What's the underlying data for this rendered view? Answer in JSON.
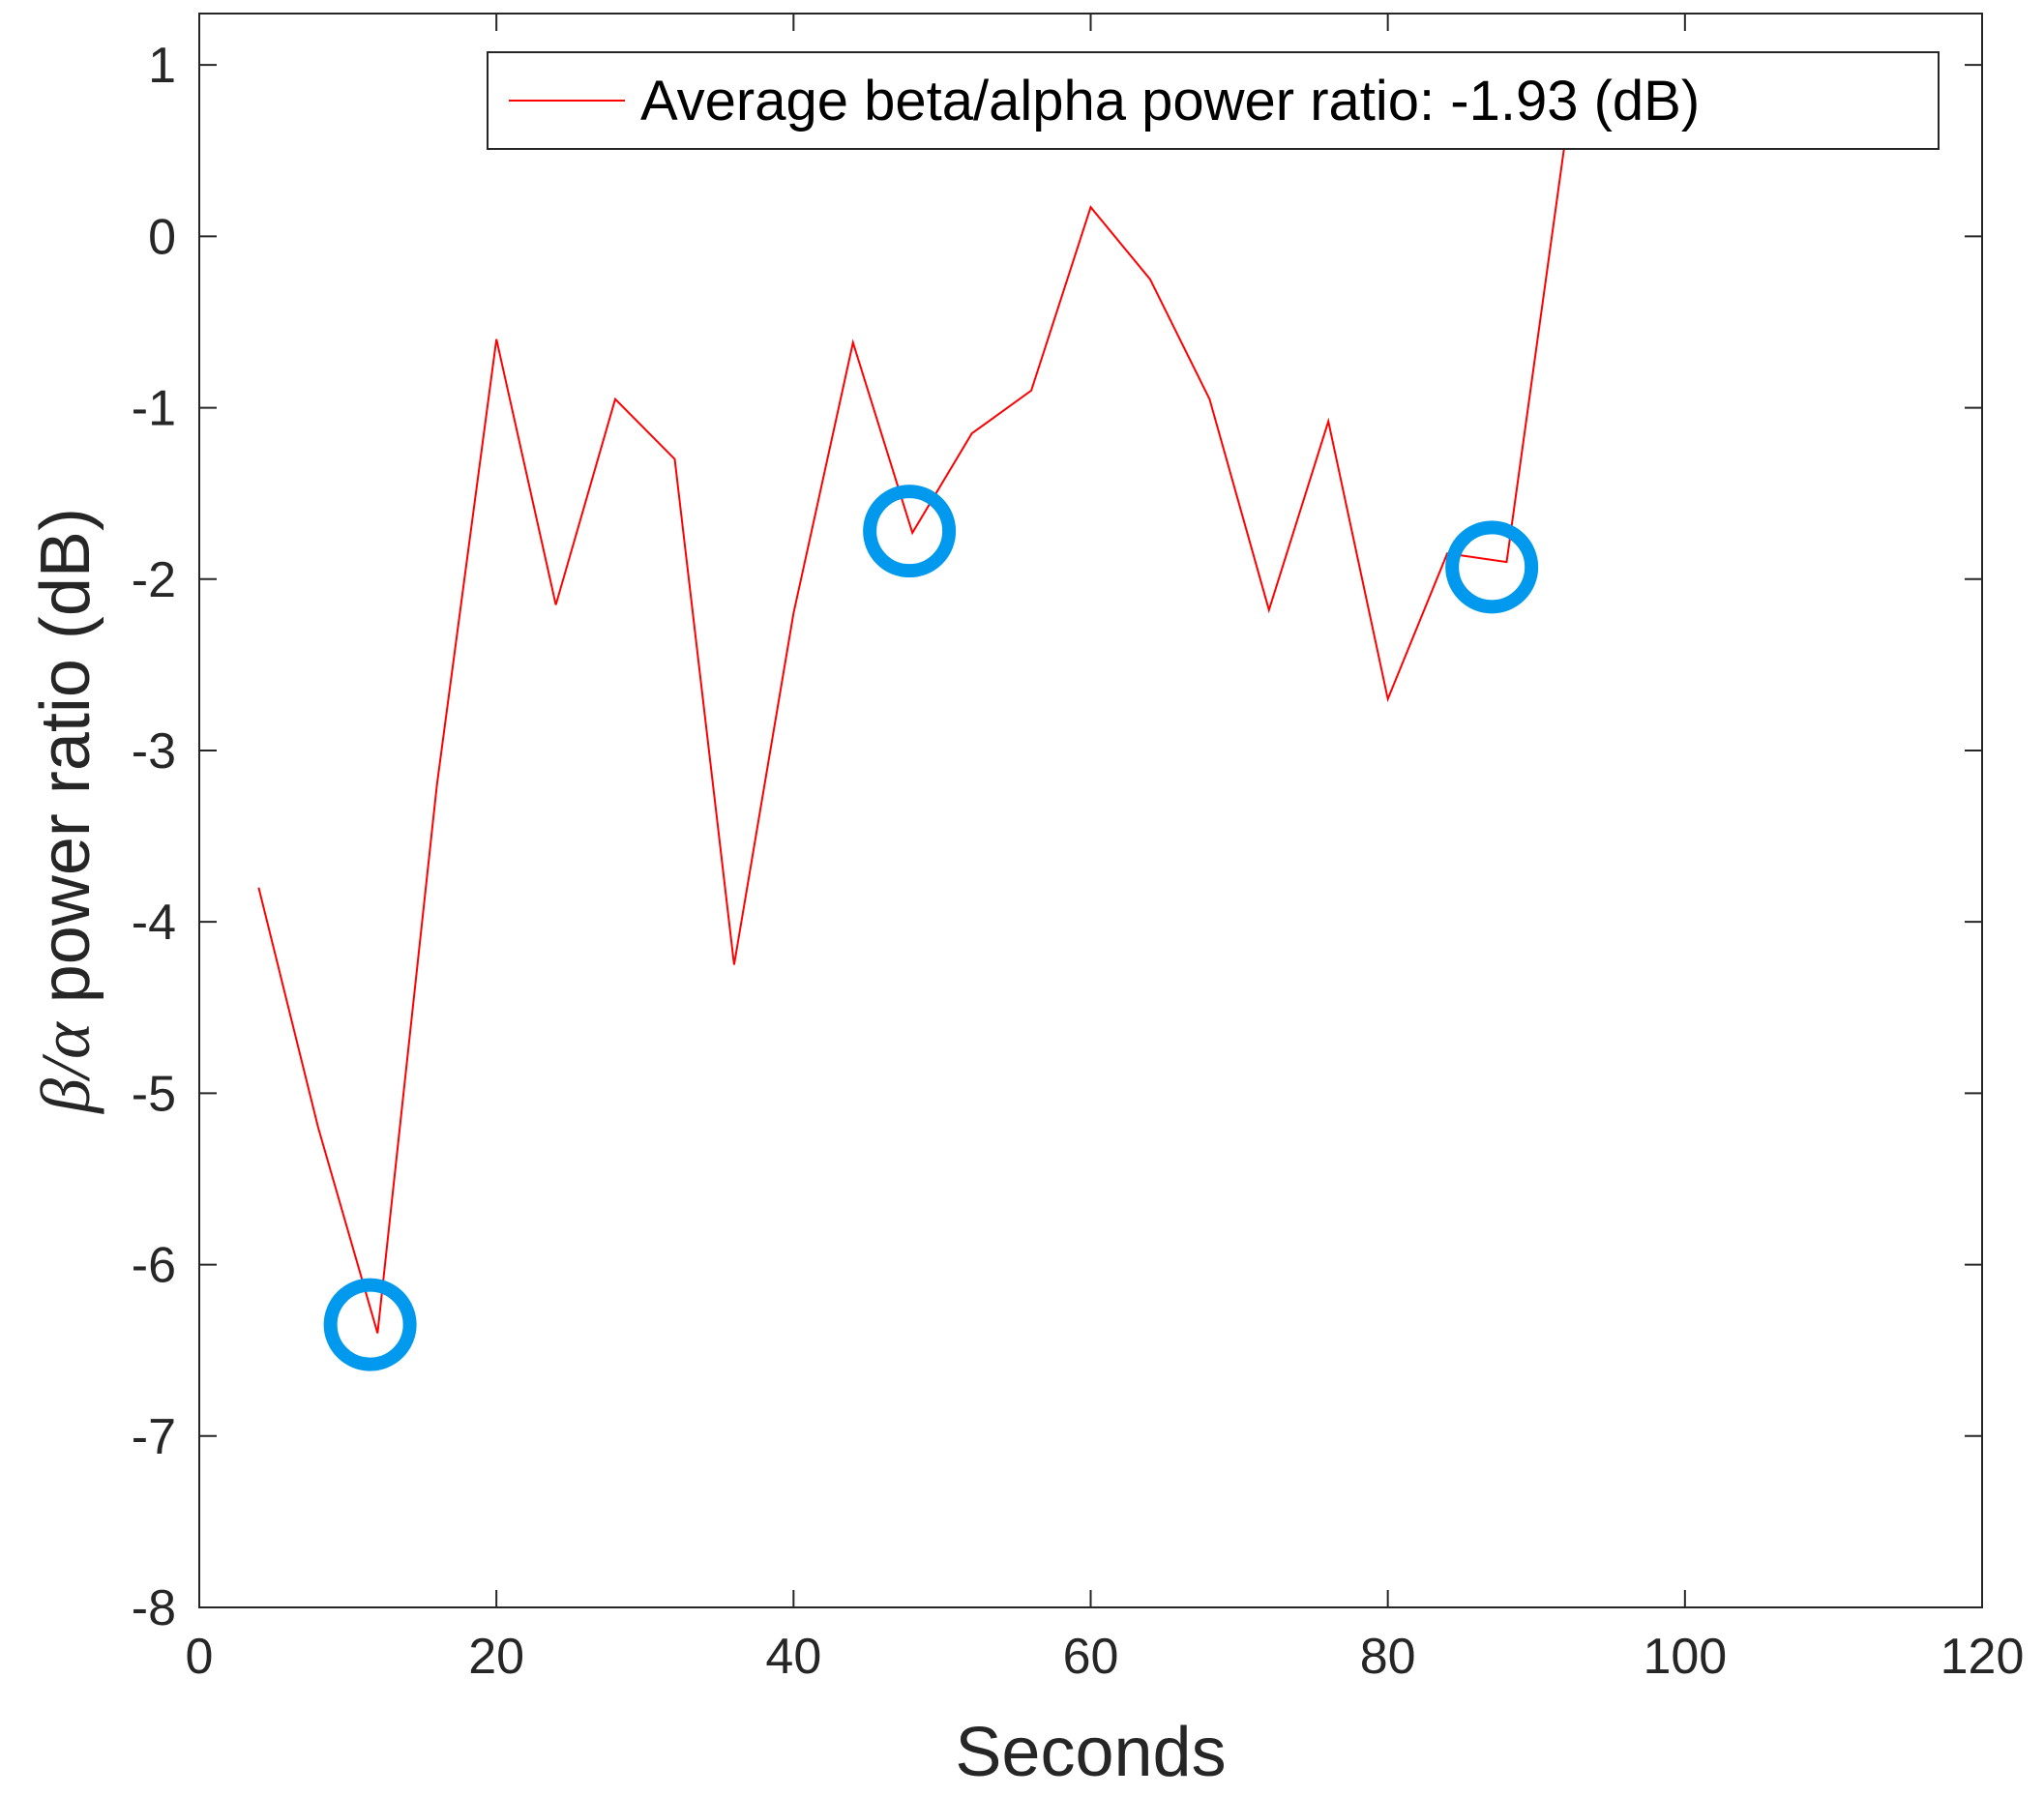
{
  "chart_data": {
    "type": "line",
    "title": "",
    "xlabel": "Seconds",
    "ylabel_symbol": "β/α",
    "ylabel_rest": " power ratio (dB)",
    "xlim": [
      0,
      120
    ],
    "ylim": [
      -8,
      1.3
    ],
    "xticks": [
      0,
      20,
      40,
      60,
      80,
      100,
      120
    ],
    "yticks": [
      -8,
      -7,
      -6,
      -5,
      -4,
      -3,
      -2,
      -1,
      0,
      1
    ],
    "grid": false,
    "legend_position": "top-right",
    "series": [
      {
        "name": "Average beta/alpha power ratio: -1.93 (dB)",
        "color": "#ff0000",
        "x": [
          4,
          8,
          12,
          16,
          20,
          24,
          28,
          32,
          36,
          40,
          44,
          48,
          52,
          56,
          60,
          64,
          68,
          72,
          76,
          80,
          84,
          88,
          92
        ],
        "y": [
          -3.8,
          -5.2,
          -6.4,
          -3.2,
          -0.6,
          -2.15,
          -0.95,
          -1.3,
          -4.25,
          -2.2,
          -0.62,
          -1.73,
          -1.15,
          -0.9,
          0.17,
          -0.25,
          -0.95,
          -2.18,
          -1.08,
          -2.7,
          -1.85,
          -1.9,
          0.6
        ]
      }
    ],
    "annotations": [
      {
        "type": "circle-marker",
        "x": 11.5,
        "y": -6.35,
        "color": "#0099ee"
      },
      {
        "type": "circle-marker",
        "x": 47.8,
        "y": -1.72,
        "color": "#0099ee"
      },
      {
        "type": "circle-marker",
        "x": 87.0,
        "y": -1.93,
        "color": "#0099ee"
      }
    ]
  }
}
